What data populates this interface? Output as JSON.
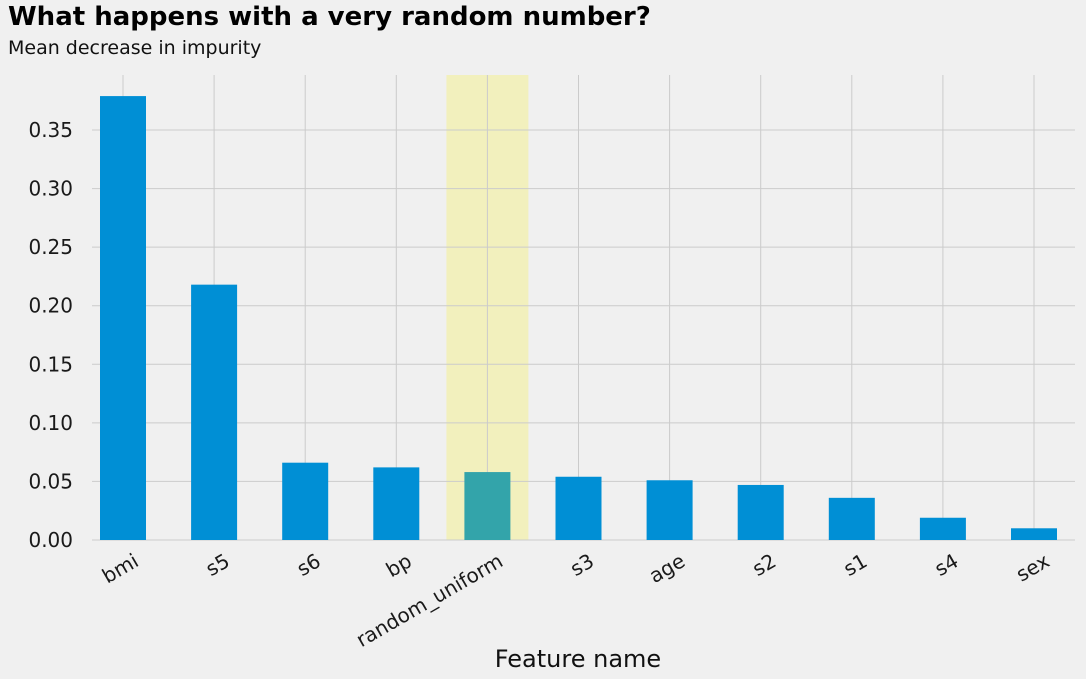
{
  "chart_data": {
    "type": "bar",
    "title": "What happens with a very random number?",
    "subtitle": "Mean decrease in impurity",
    "xlabel": "Feature name",
    "ylabel": "",
    "categories": [
      "bmi",
      "s5",
      "s6",
      "bp",
      "random_uniform",
      "s3",
      "age",
      "s2",
      "s1",
      "s4",
      "sex"
    ],
    "values": [
      0.379,
      0.218,
      0.066,
      0.062,
      0.058,
      0.054,
      0.051,
      0.047,
      0.036,
      0.019,
      0.01
    ],
    "highlight_category": "random_uniform",
    "ylim": [
      0,
      0.397
    ],
    "yticks": [
      0.0,
      0.05,
      0.1,
      0.15,
      0.2,
      0.25,
      0.3,
      0.35
    ],
    "ytick_labels": [
      "0.00",
      "0.05",
      "0.10",
      "0.15",
      "0.20",
      "0.25",
      "0.30",
      "0.35"
    ],
    "grid": true,
    "colors": {
      "bar": "#008fd5",
      "highlight_bar": "#33a4aa",
      "highlight_band": "#f2f0bd",
      "grid": "#cbcbcb",
      "background": "#f0f0f0"
    }
  }
}
